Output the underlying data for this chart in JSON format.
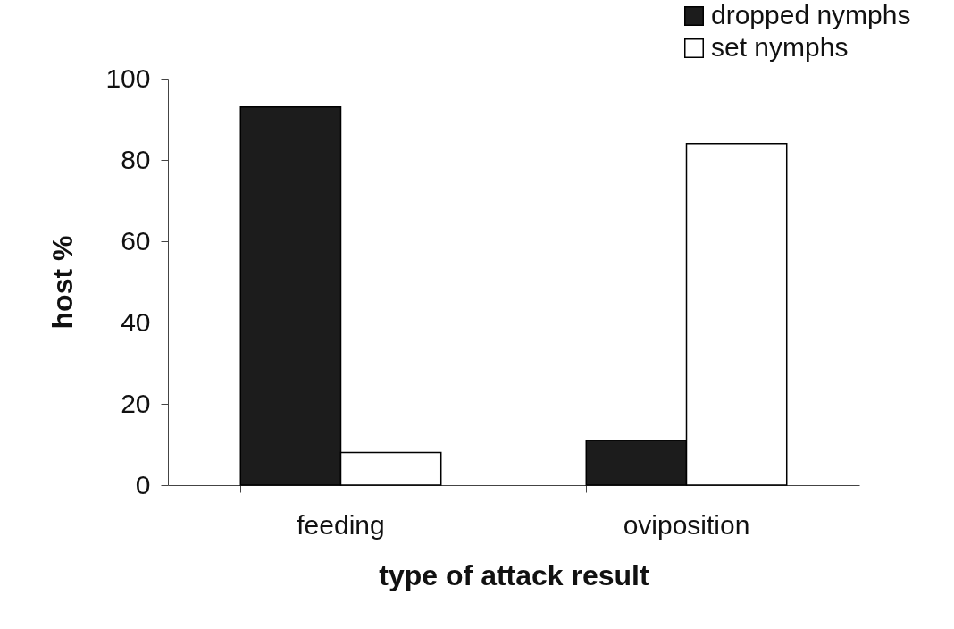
{
  "chart_data": {
    "type": "bar",
    "xlabel": "type of attack result",
    "ylabel": "host %",
    "categories": [
      "feeding",
      "oviposition"
    ],
    "series": [
      {
        "name": "dropped nymphs",
        "color": "#1c1c1c",
        "values": [
          93,
          11
        ]
      },
      {
        "name": "set nymphs",
        "color": "#ffffff",
        "values": [
          8,
          84
        ]
      }
    ],
    "ylim": [
      0,
      100
    ],
    "yticks": [
      0,
      20,
      40,
      60,
      80,
      100
    ],
    "grid": false,
    "legend": "top right"
  }
}
